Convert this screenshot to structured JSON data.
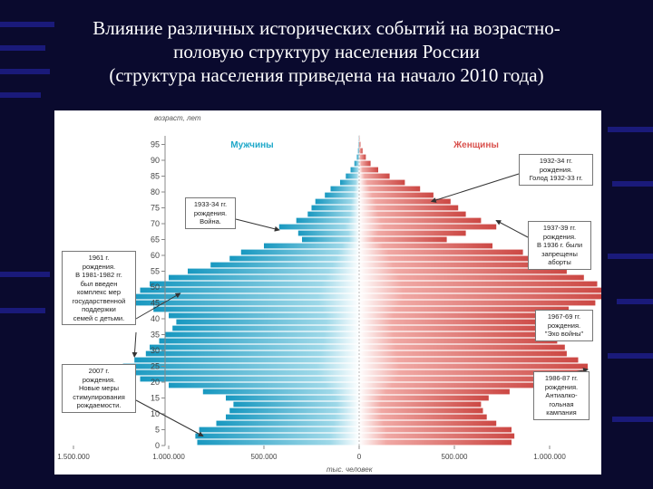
{
  "slide": {
    "title_lines": [
      "Влияние различных исторических событий на возрастно-",
      "половую структуру населения России",
      "(структура населения приведена на начало 2010 года)"
    ],
    "background_color": "#0a0a2e",
    "stripe_color": "#1a1a7a"
  },
  "chart_data": {
    "type": "bar",
    "orientation": "horizontal",
    "ylabel": "возраст, лет",
    "xlabel": "тыс. человек",
    "xlim": [
      -1500000,
      1500000
    ],
    "ylim": [
      0,
      100
    ],
    "x_ticks": [
      -1500000,
      -1000000,
      -500000,
      0,
      500000,
      1000000,
      1500000
    ],
    "x_tick_labels": [
      "1.500.000",
      "1.000.000",
      "500.000",
      "0",
      "500.000",
      "1.000.000",
      "1.500.000"
    ],
    "y_ticks": [
      0,
      5,
      10,
      15,
      20,
      25,
      30,
      35,
      40,
      45,
      50,
      55,
      60,
      65,
      70,
      75,
      80,
      85,
      90,
      95
    ],
    "grid": false,
    "legend": "top",
    "series": [
      {
        "name": "Мужчины",
        "color": "#1fa8c9",
        "ages": [
          0,
          2,
          4,
          6,
          8,
          10,
          12,
          14,
          16,
          18,
          20,
          22,
          24,
          26,
          28,
          30,
          32,
          34,
          36,
          38,
          40,
          42,
          44,
          46,
          48,
          50,
          52,
          54,
          56,
          58,
          60,
          62,
          64,
          66,
          68,
          70,
          72,
          74,
          76,
          78,
          80,
          82,
          84,
          86,
          88,
          90,
          92,
          94,
          96
        ],
        "values": [
          850000,
          860000,
          840000,
          750000,
          700000,
          680000,
          660000,
          700000,
          820000,
          1000000,
          1150000,
          1230000,
          1240000,
          1180000,
          1120000,
          1100000,
          1050000,
          1020000,
          980000,
          960000,
          1000000,
          1080000,
          1180000,
          1200000,
          1150000,
          1100000,
          1000000,
          900000,
          780000,
          680000,
          620000,
          500000,
          300000,
          320000,
          420000,
          330000,
          270000,
          250000,
          230000,
          180000,
          150000,
          100000,
          70000,
          45000,
          25000,
          12000,
          6000,
          3000,
          1000
        ]
      },
      {
        "name": "Женщины",
        "color": "#d9524e",
        "ages": [
          0,
          2,
          4,
          6,
          8,
          10,
          12,
          14,
          16,
          18,
          20,
          22,
          24,
          26,
          28,
          30,
          32,
          34,
          36,
          38,
          40,
          42,
          44,
          46,
          48,
          50,
          52,
          54,
          56,
          58,
          60,
          62,
          64,
          66,
          68,
          70,
          72,
          74,
          76,
          78,
          80,
          82,
          84,
          86,
          88,
          90,
          92,
          94,
          96
        ],
        "values": [
          800000,
          815000,
          800000,
          720000,
          670000,
          650000,
          640000,
          680000,
          790000,
          970000,
          1110000,
          1190000,
          1200000,
          1150000,
          1090000,
          1080000,
          1040000,
          1010000,
          980000,
          960000,
          1010000,
          1100000,
          1240000,
          1300000,
          1280000,
          1250000,
          1180000,
          1090000,
          1000000,
          920000,
          860000,
          700000,
          460000,
          560000,
          720000,
          640000,
          560000,
          520000,
          480000,
          390000,
          320000,
          240000,
          160000,
          100000,
          60000,
          35000,
          18000,
          7000,
          2000
        ]
      }
    ],
    "annotations": [
      {
        "id": "war-1933",
        "lines": [
          "1933-34 гг.",
          "рождения.",
          "Война."
        ]
      },
      {
        "id": "boom-1961",
        "lines": [
          "1961 г.",
          "рождения.",
          "В 1981-1982 гг.",
          "был введен",
          "комплекс мер",
          "государственной",
          "поддержки",
          "семей с детьми."
        ]
      },
      {
        "id": "measures-2007",
        "lines": [
          "2007 г.",
          "рождения.",
          "Новые меры",
          "стимулирования",
          "рождаемости."
        ]
      },
      {
        "id": "famine-1932",
        "lines": [
          "1932-34 гг.",
          "рождения.",
          "Голод 1932-33 гг."
        ]
      },
      {
        "id": "abortion-1937",
        "lines": [
          "1937-39 гг.",
          "рождения.",
          "В 1936 г. были",
          "запрещены",
          "аборты"
        ]
      },
      {
        "id": "echo-1967",
        "lines": [
          "1967-69 гг.",
          "рождения.",
          "\"Эхо войны\""
        ]
      },
      {
        "id": "antialcohol-1986",
        "lines": [
          "1986-87 гг.",
          "рождения.",
          "Антиалко-",
          "гольная",
          "кампания"
        ]
      }
    ]
  }
}
